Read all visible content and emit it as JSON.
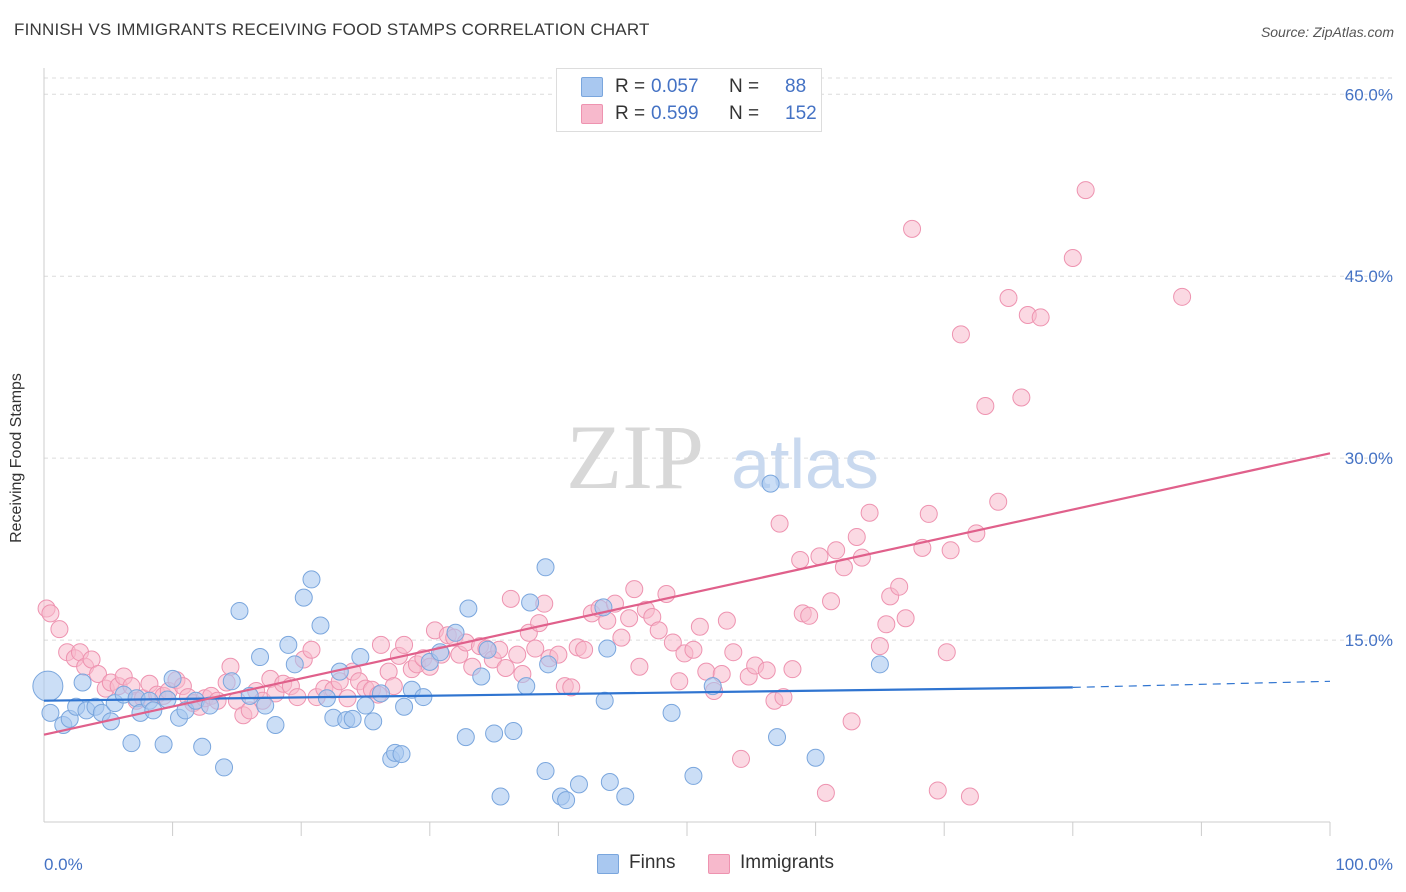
{
  "title": "FINNISH VS IMMIGRANTS RECEIVING FOOD STAMPS CORRELATION CHART",
  "source": "Source: ZipAtlas.com",
  "watermark": {
    "zip": "ZIP",
    "atlas": "atlas"
  },
  "legend": {
    "rows": [
      {
        "r_label": "R =",
        "r_value": "0.057",
        "n_label": "N =",
        "n_value": "88"
      },
      {
        "r_label": "R =",
        "r_value": "0.599",
        "n_label": "N =",
        "n_value": "152"
      }
    ]
  },
  "bottom_legend": {
    "finns": "Finns",
    "immigrants": "Immigrants"
  },
  "colors": {
    "finns_fill": "#a9c8f0",
    "finns_stroke": "#7aa6dd",
    "finns_line": "#2f74d0",
    "immigrants_fill": "#f7b9cc",
    "immigrants_stroke": "#ee93b0",
    "immigrants_line": "#e0608b",
    "tick_text": "#4472c4",
    "grid": "#dcdcdc"
  },
  "chart_data": {
    "type": "scatter",
    "ylabel": "Receiving Food Stamps",
    "xlabel": "",
    "xlim": [
      0,
      100
    ],
    "ylim": [
      0,
      62
    ],
    "x_tick_labels": [
      "0.0%",
      "100.0%"
    ],
    "y_ticks": [
      15,
      30,
      45,
      60
    ],
    "y_tick_labels": [
      "15.0%",
      "30.0%",
      "45.0%",
      "60.0%"
    ],
    "grid": "horizontal dashed",
    "legend_position": "top-center",
    "series": [
      {
        "name": "Finns",
        "R": 0.057,
        "N": 88,
        "trend": {
          "x0": 0,
          "y0": 10.0,
          "x1": 80,
          "y1": 11.1,
          "dash_to_x": 100,
          "dash_to_y": 11.6
        },
        "points": [
          [
            0.3,
            11.2
          ],
          [
            0.5,
            9.0
          ],
          [
            1.5,
            8.0
          ],
          [
            2,
            8.5
          ],
          [
            2.5,
            9.5
          ],
          [
            3,
            11.5
          ],
          [
            3.3,
            9.2
          ],
          [
            4,
            9.5
          ],
          [
            4.5,
            9.0
          ],
          [
            5.2,
            8.3
          ],
          [
            5.5,
            9.8
          ],
          [
            6.2,
            10.5
          ],
          [
            6.8,
            6.5
          ],
          [
            7.2,
            10.2
          ],
          [
            7.5,
            9.0
          ],
          [
            8.2,
            10.0
          ],
          [
            8.5,
            9.2
          ],
          [
            9.3,
            6.4
          ],
          [
            9.6,
            10.1
          ],
          [
            10,
            11.8
          ],
          [
            10.5,
            8.6
          ],
          [
            11,
            9.2
          ],
          [
            11.8,
            10.0
          ],
          [
            12.3,
            6.2
          ],
          [
            12.9,
            9.6
          ],
          [
            14,
            4.5
          ],
          [
            14.6,
            11.6
          ],
          [
            15.2,
            17.4
          ],
          [
            16,
            10.4
          ],
          [
            16.8,
            13.6
          ],
          [
            17.2,
            9.6
          ],
          [
            18,
            8.0
          ],
          [
            19,
            14.6
          ],
          [
            19.5,
            13.0
          ],
          [
            20.2,
            18.5
          ],
          [
            20.8,
            20.0
          ],
          [
            21.5,
            16.2
          ],
          [
            22,
            10.2
          ],
          [
            22.5,
            8.6
          ],
          [
            23,
            12.4
          ],
          [
            23.5,
            8.4
          ],
          [
            24,
            8.5
          ],
          [
            24.6,
            13.6
          ],
          [
            25,
            9.6
          ],
          [
            25.6,
            8.3
          ],
          [
            26.2,
            10.6
          ],
          [
            27,
            5.2
          ],
          [
            27.3,
            5.7
          ],
          [
            28,
            9.5
          ],
          [
            27.8,
            5.6
          ],
          [
            28.6,
            10.9
          ],
          [
            29.5,
            10.3
          ],
          [
            30,
            13.2
          ],
          [
            30.8,
            14.0
          ],
          [
            32,
            15.6
          ],
          [
            32.8,
            7.0
          ],
          [
            33,
            17.6
          ],
          [
            34,
            12.0
          ],
          [
            34.5,
            14.2
          ],
          [
            35,
            7.3
          ],
          [
            35.5,
            2.1
          ],
          [
            36.5,
            7.5
          ],
          [
            37.5,
            11.2
          ],
          [
            37.8,
            18.1
          ],
          [
            39,
            21.0
          ],
          [
            39,
            4.2
          ],
          [
            39.2,
            13.0
          ],
          [
            40.2,
            2.1
          ],
          [
            40.6,
            1.8
          ],
          [
            41.6,
            3.1
          ],
          [
            43.5,
            17.7
          ],
          [
            43.6,
            10.0
          ],
          [
            43.8,
            14.3
          ],
          [
            44,
            3.3
          ],
          [
            45.2,
            2.1
          ],
          [
            48.8,
            9.0
          ],
          [
            50.5,
            3.8
          ],
          [
            52,
            11.2
          ],
          [
            56.5,
            27.9
          ],
          [
            57,
            7.0
          ],
          [
            60,
            5.3
          ],
          [
            65,
            13.0
          ]
        ]
      },
      {
        "name": "Immigrants",
        "R": 0.599,
        "N": 152,
        "trend": {
          "x0": 0,
          "y0": 7.2,
          "x1": 100,
          "y1": 30.4
        },
        "points": [
          [
            0.2,
            17.6
          ],
          [
            0.5,
            17.2
          ],
          [
            1.2,
            15.9
          ],
          [
            1.8,
            14.0
          ],
          [
            2.4,
            13.5
          ],
          [
            2.8,
            14.0
          ],
          [
            3.2,
            12.8
          ],
          [
            3.7,
            13.4
          ],
          [
            4.2,
            12.2
          ],
          [
            4.8,
            11.0
          ],
          [
            5.2,
            11.5
          ],
          [
            5.8,
            11.2
          ],
          [
            6.2,
            12.0
          ],
          [
            6.8,
            11.2
          ],
          [
            7.2,
            10.0
          ],
          [
            7.7,
            10.2
          ],
          [
            8.2,
            11.4
          ],
          [
            8.8,
            10.5
          ],
          [
            9.3,
            10.4
          ],
          [
            9.7,
            10.8
          ],
          [
            10.3,
            11.7
          ],
          [
            10.8,
            11.2
          ],
          [
            11.2,
            10.3
          ],
          [
            11.6,
            9.8
          ],
          [
            12.1,
            9.5
          ],
          [
            12.5,
            10.2
          ],
          [
            13,
            10.4
          ],
          [
            13.5,
            10.0
          ],
          [
            14.2,
            11.5
          ],
          [
            14.5,
            12.8
          ],
          [
            15,
            10.0
          ],
          [
            15.5,
            8.8
          ],
          [
            16,
            9.2
          ],
          [
            16.5,
            10.8
          ],
          [
            17,
            10.0
          ],
          [
            17.6,
            11.8
          ],
          [
            18,
            10.6
          ],
          [
            18.6,
            11.4
          ],
          [
            19.2,
            11.2
          ],
          [
            19.7,
            10.3
          ],
          [
            20.2,
            13.4
          ],
          [
            20.8,
            14.2
          ],
          [
            21.2,
            10.3
          ],
          [
            21.8,
            11.0
          ],
          [
            22.5,
            10.9
          ],
          [
            23,
            11.6
          ],
          [
            23.6,
            10.2
          ],
          [
            24,
            12.4
          ],
          [
            24.5,
            11.6
          ],
          [
            25,
            11.0
          ],
          [
            25.5,
            10.9
          ],
          [
            26,
            10.5
          ],
          [
            26.2,
            14.6
          ],
          [
            26.8,
            12.4
          ],
          [
            27.2,
            11.2
          ],
          [
            27.6,
            13.7
          ],
          [
            28,
            14.6
          ],
          [
            28.6,
            12.6
          ],
          [
            29,
            13.0
          ],
          [
            29.5,
            13.5
          ],
          [
            30,
            12.8
          ],
          [
            30.4,
            15.8
          ],
          [
            30.9,
            13.8
          ],
          [
            31.4,
            15.4
          ],
          [
            31.9,
            15.2
          ],
          [
            32.3,
            13.8
          ],
          [
            32.8,
            14.8
          ],
          [
            33.3,
            12.8
          ],
          [
            33.9,
            14.5
          ],
          [
            34.4,
            14.3
          ],
          [
            34.9,
            13.4
          ],
          [
            35.4,
            14.2
          ],
          [
            35.9,
            12.7
          ],
          [
            36.3,
            18.4
          ],
          [
            36.8,
            13.8
          ],
          [
            37.2,
            12.2
          ],
          [
            37.7,
            15.6
          ],
          [
            38.2,
            14.3
          ],
          [
            38.5,
            16.4
          ],
          [
            38.9,
            18.0
          ],
          [
            39.3,
            13.5
          ],
          [
            40,
            13.8
          ],
          [
            40.5,
            11.2
          ],
          [
            41,
            11.1
          ],
          [
            41.5,
            14.4
          ],
          [
            42,
            14.2
          ],
          [
            42.6,
            17.2
          ],
          [
            43.2,
            17.6
          ],
          [
            43.8,
            16.6
          ],
          [
            44.4,
            18.0
          ],
          [
            44.9,
            15.2
          ],
          [
            45.5,
            16.8
          ],
          [
            45.9,
            19.2
          ],
          [
            46.3,
            12.8
          ],
          [
            46.8,
            17.5
          ],
          [
            47.3,
            16.9
          ],
          [
            47.8,
            15.8
          ],
          [
            48.4,
            18.8
          ],
          [
            48.9,
            14.8
          ],
          [
            49.4,
            11.6
          ],
          [
            49.8,
            13.9
          ],
          [
            50.5,
            14.2
          ],
          [
            51,
            16.1
          ],
          [
            51.5,
            12.4
          ],
          [
            52.1,
            10.8
          ],
          [
            52.7,
            12.2
          ],
          [
            53.1,
            16.6
          ],
          [
            53.6,
            14.0
          ],
          [
            54.2,
            5.2
          ],
          [
            54.8,
            12.0
          ],
          [
            55.3,
            12.9
          ],
          [
            56.2,
            12.5
          ],
          [
            56.8,
            10.0
          ],
          [
            57.2,
            24.6
          ],
          [
            57.5,
            10.3
          ],
          [
            58.2,
            12.6
          ],
          [
            58.8,
            21.6
          ],
          [
            59,
            17.2
          ],
          [
            59.5,
            17.0
          ],
          [
            60.3,
            21.9
          ],
          [
            60.8,
            2.4
          ],
          [
            61.2,
            18.2
          ],
          [
            61.6,
            22.4
          ],
          [
            62.2,
            21.0
          ],
          [
            62.8,
            8.3
          ],
          [
            63.2,
            23.5
          ],
          [
            63.6,
            21.8
          ],
          [
            64.2,
            25.5
          ],
          [
            65,
            14.5
          ],
          [
            65.5,
            16.3
          ],
          [
            65.8,
            18.6
          ],
          [
            66.5,
            19.4
          ],
          [
            67,
            16.8
          ],
          [
            67.5,
            48.9
          ],
          [
            68.3,
            22.6
          ],
          [
            68.8,
            25.4
          ],
          [
            69.5,
            2.6
          ],
          [
            70.2,
            14.0
          ],
          [
            70.5,
            22.4
          ],
          [
            71.3,
            40.2
          ],
          [
            72,
            2.1
          ],
          [
            72.5,
            23.8
          ],
          [
            73.2,
            34.3
          ],
          [
            74.2,
            26.4
          ],
          [
            75,
            43.2
          ],
          [
            76,
            35.0
          ],
          [
            76.5,
            41.8
          ],
          [
            77.5,
            41.6
          ],
          [
            80,
            46.5
          ],
          [
            81,
            52.1
          ],
          [
            88.5,
            43.3
          ]
        ]
      }
    ]
  }
}
